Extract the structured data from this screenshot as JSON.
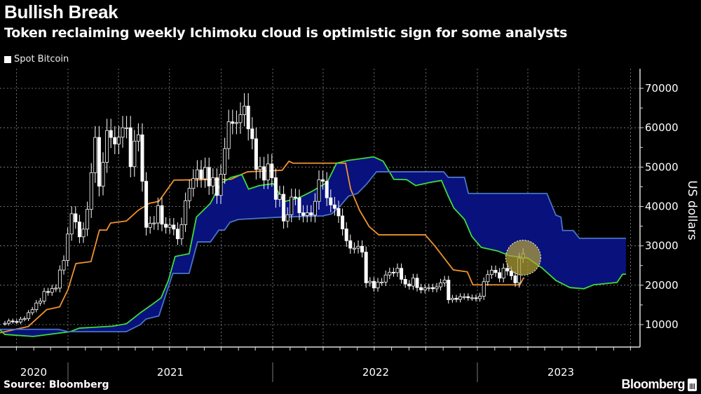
{
  "header": {
    "title": "Bullish Break",
    "subtitle": "Token reclaiming weekly Ichimoku cloud is optimistic sign for some analysts"
  },
  "footer": {
    "source": "Source: Bloomberg",
    "logo": "Bloomberg"
  },
  "colors": {
    "background": "#000000",
    "candles": "#ffffff",
    "orange_line": "#f0922e",
    "green_line": "#3fdc3a",
    "blue_line": "#4a74c8",
    "cloud_fill": "#08117c",
    "highlight": "#b3a23a"
  },
  "chart_data": {
    "type": "candlestick",
    "title": "Bullish Break",
    "subtitle": "Token reclaiming weekly Ichimoku cloud is optimistic sign for some analysts",
    "ylabel": "US dollars",
    "xlabel": "",
    "ylim": [
      5000,
      75000
    ],
    "y_ticks": [
      "10000",
      "20000",
      "30000",
      "40000",
      "50000",
      "60000",
      "70000"
    ],
    "y_tick_values": [
      10000,
      20000,
      30000,
      40000,
      50000,
      60000,
      70000
    ],
    "x_ticks": [
      "2020",
      "2021",
      "2022",
      "2023"
    ],
    "grid": true,
    "y_axis_side": "right",
    "legend": {
      "position": "top-left",
      "entries": [
        "Spot Bitcoin"
      ]
    },
    "candle_series": {
      "name": "Spot Bitcoin",
      "interval": "weekly",
      "dates": [
        "2020-09-07",
        "2020-09-14",
        "2020-09-21",
        "2020-09-28",
        "2020-10-05",
        "2020-10-12",
        "2020-10-19",
        "2020-10-26",
        "2020-11-02",
        "2020-11-09",
        "2020-11-16",
        "2020-11-23",
        "2020-11-30",
        "2020-12-07",
        "2020-12-14",
        "2020-12-21",
        "2020-12-28",
        "2021-01-04",
        "2021-01-11",
        "2021-01-18",
        "2021-01-25",
        "2021-02-01",
        "2021-02-08",
        "2021-02-15",
        "2021-02-22",
        "2021-03-01",
        "2021-03-08",
        "2021-03-15",
        "2021-03-22",
        "2021-03-29",
        "2021-04-05",
        "2021-04-12",
        "2021-04-19",
        "2021-04-26",
        "2021-05-03",
        "2021-05-10",
        "2021-05-17",
        "2021-05-24",
        "2021-05-31",
        "2021-06-07",
        "2021-06-14",
        "2021-06-21",
        "2021-06-28",
        "2021-07-05",
        "2021-07-12",
        "2021-07-19",
        "2021-07-26",
        "2021-08-02",
        "2021-08-09",
        "2021-08-16",
        "2021-08-23",
        "2021-08-30",
        "2021-09-06",
        "2021-09-13",
        "2021-09-20",
        "2021-09-27",
        "2021-10-04",
        "2021-10-11",
        "2021-10-18",
        "2021-10-25",
        "2021-11-01",
        "2021-11-08",
        "2021-11-15",
        "2021-11-22",
        "2021-11-29",
        "2021-12-06",
        "2021-12-13",
        "2021-12-20",
        "2021-12-27",
        "2022-01-03",
        "2022-01-10",
        "2022-01-17",
        "2022-01-24",
        "2022-01-31",
        "2022-02-07",
        "2022-02-14",
        "2022-02-21",
        "2022-02-28",
        "2022-03-07",
        "2022-03-14",
        "2022-03-21",
        "2022-03-28",
        "2022-04-04",
        "2022-04-11",
        "2022-04-18",
        "2022-04-25",
        "2022-05-02",
        "2022-05-09",
        "2022-05-16",
        "2022-05-23",
        "2022-05-30",
        "2022-06-06",
        "2022-06-13",
        "2022-06-20",
        "2022-06-27",
        "2022-07-04",
        "2022-07-11",
        "2022-07-18",
        "2022-07-25",
        "2022-08-01",
        "2022-08-08",
        "2022-08-15",
        "2022-08-22",
        "2022-08-29",
        "2022-09-05",
        "2022-09-12",
        "2022-09-19",
        "2022-09-26",
        "2022-10-03",
        "2022-10-10",
        "2022-10-17",
        "2022-10-24",
        "2022-10-31",
        "2022-11-07",
        "2022-11-14",
        "2022-11-21",
        "2022-11-28",
        "2022-12-05",
        "2022-12-12",
        "2022-12-19",
        "2022-12-26",
        "2023-01-02",
        "2023-01-09",
        "2023-01-16",
        "2023-01-23",
        "2023-01-30",
        "2023-02-06",
        "2023-02-13",
        "2023-02-20",
        "2023-02-27",
        "2023-03-06",
        "2023-03-13",
        "2023-03-20"
      ],
      "open": [
        10280,
        10330,
        10920,
        10780,
        10670,
        11380,
        11500,
        13030,
        13800,
        15480,
        15970,
        18400,
        18180,
        19150,
        19270,
        23860,
        26270,
        33000,
        38150,
        36070,
        32290,
        34250,
        39260,
        48580,
        57540,
        45140,
        51200,
        59300,
        57520,
        55860,
        57600,
        60000,
        60000,
        50100,
        56600,
        58200,
        46400,
        34700,
        35700,
        35800,
        40200,
        35500,
        34700,
        35300,
        34250,
        31780,
        35400,
        41460,
        44600,
        47100,
        49300,
        47000,
        49900,
        45200,
        47300,
        42800,
        48200,
        54700,
        61500,
        61100,
        61300,
        63300,
        65500,
        59700,
        57200,
        49400,
        50100,
        46700,
        50800,
        47300,
        41800,
        43100,
        36300,
        37900,
        42400,
        42200,
        38400,
        37700,
        38400,
        37800,
        41300,
        46800,
        46400,
        42200,
        40400,
        39500,
        37600,
        34300,
        31300,
        29400,
        29400,
        29900,
        28400,
        20600,
        21000,
        19300,
        20800,
        20800,
        22600,
        23300,
        23200,
        24300,
        21500,
        20300,
        19800,
        21800,
        19400,
        18800,
        19300,
        19400,
        19100,
        19600,
        20600,
        21300,
        16300,
        16700,
        16400,
        17100,
        17100,
        16800,
        16800,
        16600,
        17200,
        20900,
        22700,
        23800,
        23200,
        21800,
        24300,
        23600,
        22400,
        20600,
        26900
      ],
      "close": [
        10330,
        10920,
        10780,
        10670,
        11380,
        11500,
        13030,
        13800,
        15480,
        15970,
        18400,
        18180,
        19150,
        19270,
        23860,
        26270,
        33000,
        38150,
        36070,
        32290,
        34250,
        39260,
        48580,
        57540,
        45140,
        51200,
        59300,
        57520,
        55860,
        57600,
        60000,
        60000,
        50100,
        56600,
        58200,
        46400,
        34700,
        35700,
        35800,
        40200,
        35500,
        34700,
        35300,
        34250,
        31780,
        35400,
        41460,
        44600,
        47100,
        49300,
        47000,
        49900,
        45200,
        47300,
        42800,
        48200,
        54700,
        61500,
        61100,
        61300,
        63300,
        65500,
        59700,
        57200,
        49400,
        50100,
        46700,
        50800,
        47300,
        41800,
        43100,
        36300,
        37900,
        42400,
        42200,
        38400,
        37700,
        38400,
        37800,
        41300,
        46800,
        46400,
        42200,
        40400,
        39500,
        37600,
        34300,
        31300,
        29400,
        29400,
        29900,
        28400,
        20600,
        21000,
        19300,
        20800,
        20800,
        22600,
        23300,
        23200,
        24300,
        21500,
        20300,
        19800,
        21800,
        19400,
        18800,
        19300,
        19400,
        19100,
        19600,
        20600,
        21300,
        16300,
        16700,
        16400,
        17100,
        17100,
        16800,
        16800,
        16600,
        17200,
        20900,
        22700,
        23800,
        23200,
        21800,
        24300,
        23600,
        22400,
        20600,
        26900,
        28000
      ]
    },
    "lines": [
      {
        "key": "orange",
        "color": "#f0922e",
        "points": [
          [
            "2020-09-01",
            7900
          ],
          [
            "2020-10-22",
            9500
          ],
          [
            "2020-11-24",
            13800
          ],
          [
            "2020-12-17",
            14500
          ],
          [
            "2021-01-01",
            18900
          ],
          [
            "2021-01-15",
            25500
          ],
          [
            "2021-02-11",
            26000
          ],
          [
            "2021-02-26",
            34000
          ],
          [
            "2021-03-11",
            34000
          ],
          [
            "2021-03-18",
            35800
          ],
          [
            "2021-04-15",
            36300
          ],
          [
            "2021-05-06",
            39000
          ],
          [
            "2021-05-26",
            40800
          ],
          [
            "2021-06-12",
            41300
          ],
          [
            "2021-07-09",
            46700
          ],
          [
            "2021-10-19",
            46900
          ],
          [
            "2021-11-04",
            48000
          ],
          [
            "2021-11-17",
            48800
          ],
          [
            "2022-01-18",
            49200
          ],
          [
            "2022-01-30",
            51500
          ],
          [
            "2022-02-06",
            51000
          ],
          [
            "2022-05-11",
            51000
          ],
          [
            "2022-05-20",
            44400
          ],
          [
            "2022-06-05",
            39000
          ],
          [
            "2022-06-22",
            34900
          ],
          [
            "2022-07-09",
            32800
          ],
          [
            "2022-09-30",
            32800
          ],
          [
            "2022-10-17",
            30000
          ],
          [
            "2022-11-19",
            23900
          ],
          [
            "2022-12-14",
            23400
          ],
          [
            "2022-12-24",
            20100
          ],
          [
            "2023-03-18",
            20100
          ],
          [
            "2023-03-24",
            21800
          ],
          [
            "2023-03-26",
            21800
          ]
        ]
      },
      {
        "key": "green",
        "color": "#3fdc3a",
        "points": [
          [
            "2020-09-01",
            8800
          ],
          [
            "2020-09-10",
            7500
          ],
          [
            "2020-10-31",
            7000
          ],
          [
            "2021-01-05",
            8200
          ],
          [
            "2021-01-21",
            9100
          ],
          [
            "2021-03-21",
            9600
          ],
          [
            "2021-04-15",
            10200
          ],
          [
            "2021-05-10",
            13000
          ],
          [
            "2021-05-28",
            14800
          ],
          [
            "2021-06-16",
            16800
          ],
          [
            "2021-06-29",
            21200
          ],
          [
            "2021-07-11",
            27300
          ],
          [
            "2021-08-05",
            28000
          ],
          [
            "2021-08-18",
            37300
          ],
          [
            "2021-09-12",
            40800
          ],
          [
            "2021-09-30",
            45800
          ],
          [
            "2021-10-19",
            47400
          ],
          [
            "2021-11-07",
            48100
          ],
          [
            "2021-11-19",
            44400
          ],
          [
            "2021-12-08",
            45300
          ],
          [
            "2022-01-02",
            45800
          ],
          [
            "2022-01-21",
            41200
          ],
          [
            "2022-02-17",
            42200
          ],
          [
            "2022-03-14",
            44000
          ],
          [
            "2022-04-08",
            46100
          ],
          [
            "2022-04-25",
            51000
          ],
          [
            "2022-05-16",
            51700
          ],
          [
            "2022-06-30",
            52600
          ],
          [
            "2022-07-17",
            51500
          ],
          [
            "2022-08-05",
            46900
          ],
          [
            "2022-08-28",
            46800
          ],
          [
            "2022-09-13",
            45300
          ],
          [
            "2022-10-08",
            46100
          ],
          [
            "2022-10-29",
            46600
          ],
          [
            "2022-11-10",
            42600
          ],
          [
            "2022-11-20",
            39600
          ],
          [
            "2022-12-09",
            36700
          ],
          [
            "2022-12-22",
            32400
          ],
          [
            "2023-01-08",
            29600
          ],
          [
            "2023-02-06",
            28700
          ],
          [
            "2023-02-27",
            27500
          ],
          [
            "2023-04-01",
            26900
          ],
          [
            "2023-04-26",
            24400
          ],
          [
            "2023-05-21",
            21200
          ],
          [
            "2023-06-15",
            19400
          ],
          [
            "2023-07-10",
            19100
          ],
          [
            "2023-07-27",
            20100
          ],
          [
            "2023-09-07",
            20700
          ],
          [
            "2023-09-17",
            22800
          ],
          [
            "2023-09-23",
            22800
          ]
        ]
      },
      {
        "key": "blue",
        "color": "#4a74c8",
        "points": [
          [
            "2020-09-01",
            8800
          ],
          [
            "2020-12-15",
            8800
          ],
          [
            "2021-01-01",
            8200
          ],
          [
            "2021-04-15",
            8200
          ],
          [
            "2021-05-10",
            10000
          ],
          [
            "2021-05-20",
            11400
          ],
          [
            "2021-06-12",
            12200
          ],
          [
            "2021-07-07",
            23000
          ],
          [
            "2021-08-05",
            23000
          ],
          [
            "2021-08-20",
            31000
          ],
          [
            "2021-09-12",
            31000
          ],
          [
            "2021-09-27",
            34000
          ],
          [
            "2021-10-07",
            34000
          ],
          [
            "2021-10-17",
            36000
          ],
          [
            "2021-11-01",
            36700
          ],
          [
            "2022-01-15",
            37300
          ],
          [
            "2022-03-31",
            37600
          ],
          [
            "2022-04-16",
            38100
          ],
          [
            "2022-05-03",
            40400
          ],
          [
            "2022-05-16",
            42600
          ],
          [
            "2022-06-01",
            43300
          ],
          [
            "2022-06-17",
            45600
          ],
          [
            "2022-07-05",
            48800
          ],
          [
            "2022-11-02",
            48800
          ],
          [
            "2022-11-10",
            47400
          ],
          [
            "2022-12-09",
            47400
          ],
          [
            "2022-12-16",
            43300
          ],
          [
            "2023-05-05",
            43300
          ],
          [
            "2023-05-21",
            37800
          ],
          [
            "2023-05-30",
            37300
          ],
          [
            "2023-06-02",
            33900
          ],
          [
            "2023-06-21",
            33900
          ],
          [
            "2023-07-02",
            31900
          ],
          [
            "2023-09-23",
            31900
          ]
        ]
      }
    ],
    "cloud": {
      "between": [
        "green",
        "blue"
      ],
      "color": "#08117c"
    },
    "highlight": {
      "date": "2023-03-20",
      "value": 27000,
      "color": "#b3a23a"
    }
  }
}
